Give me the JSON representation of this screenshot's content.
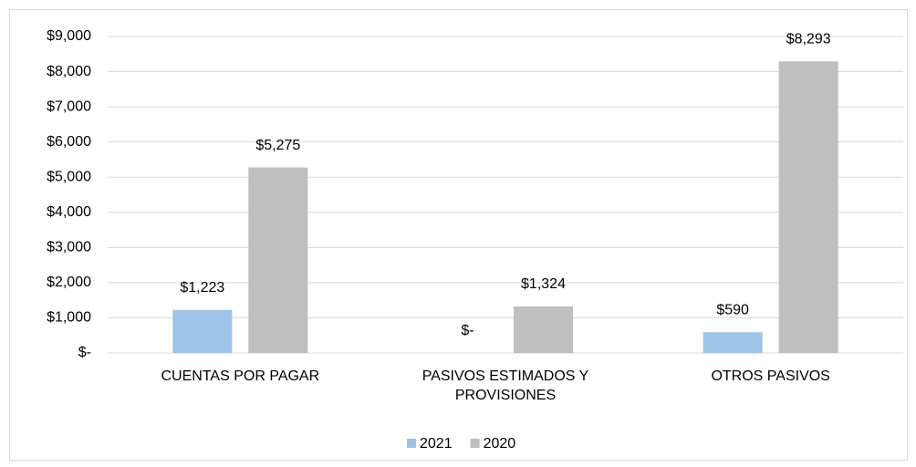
{
  "chart_data": {
    "type": "bar",
    "categories": [
      "CUENTAS POR PAGAR",
      "PASIVOS ESTIMADOS Y PROVISIONES",
      "OTROS PASIVOS"
    ],
    "series": [
      {
        "name": "2021",
        "color": "#9dc3e6",
        "values": [
          1223,
          0,
          590
        ],
        "value_labels": [
          "$1,223",
          "$-",
          "$590"
        ]
      },
      {
        "name": "2020",
        "color": "#bfbfbf",
        "values": [
          5275,
          1324,
          8293
        ],
        "value_labels": [
          "$5,275",
          "$1,324",
          "$8,293"
        ]
      }
    ],
    "ylim": [
      0,
      9000
    ],
    "yticks": [
      {
        "value": 0,
        "label": "$-"
      },
      {
        "value": 1000,
        "label": "$1,000"
      },
      {
        "value": 2000,
        "label": "$2,000"
      },
      {
        "value": 3000,
        "label": "$3,000"
      },
      {
        "value": 4000,
        "label": "$4,000"
      },
      {
        "value": 5000,
        "label": "$5,000"
      },
      {
        "value": 6000,
        "label": "$6,000"
      },
      {
        "value": 7000,
        "label": "$7,000"
      },
      {
        "value": 8000,
        "label": "$8,000"
      },
      {
        "value": 9000,
        "label": "$9,000"
      }
    ],
    "grid": true,
    "legend": "bottom"
  }
}
